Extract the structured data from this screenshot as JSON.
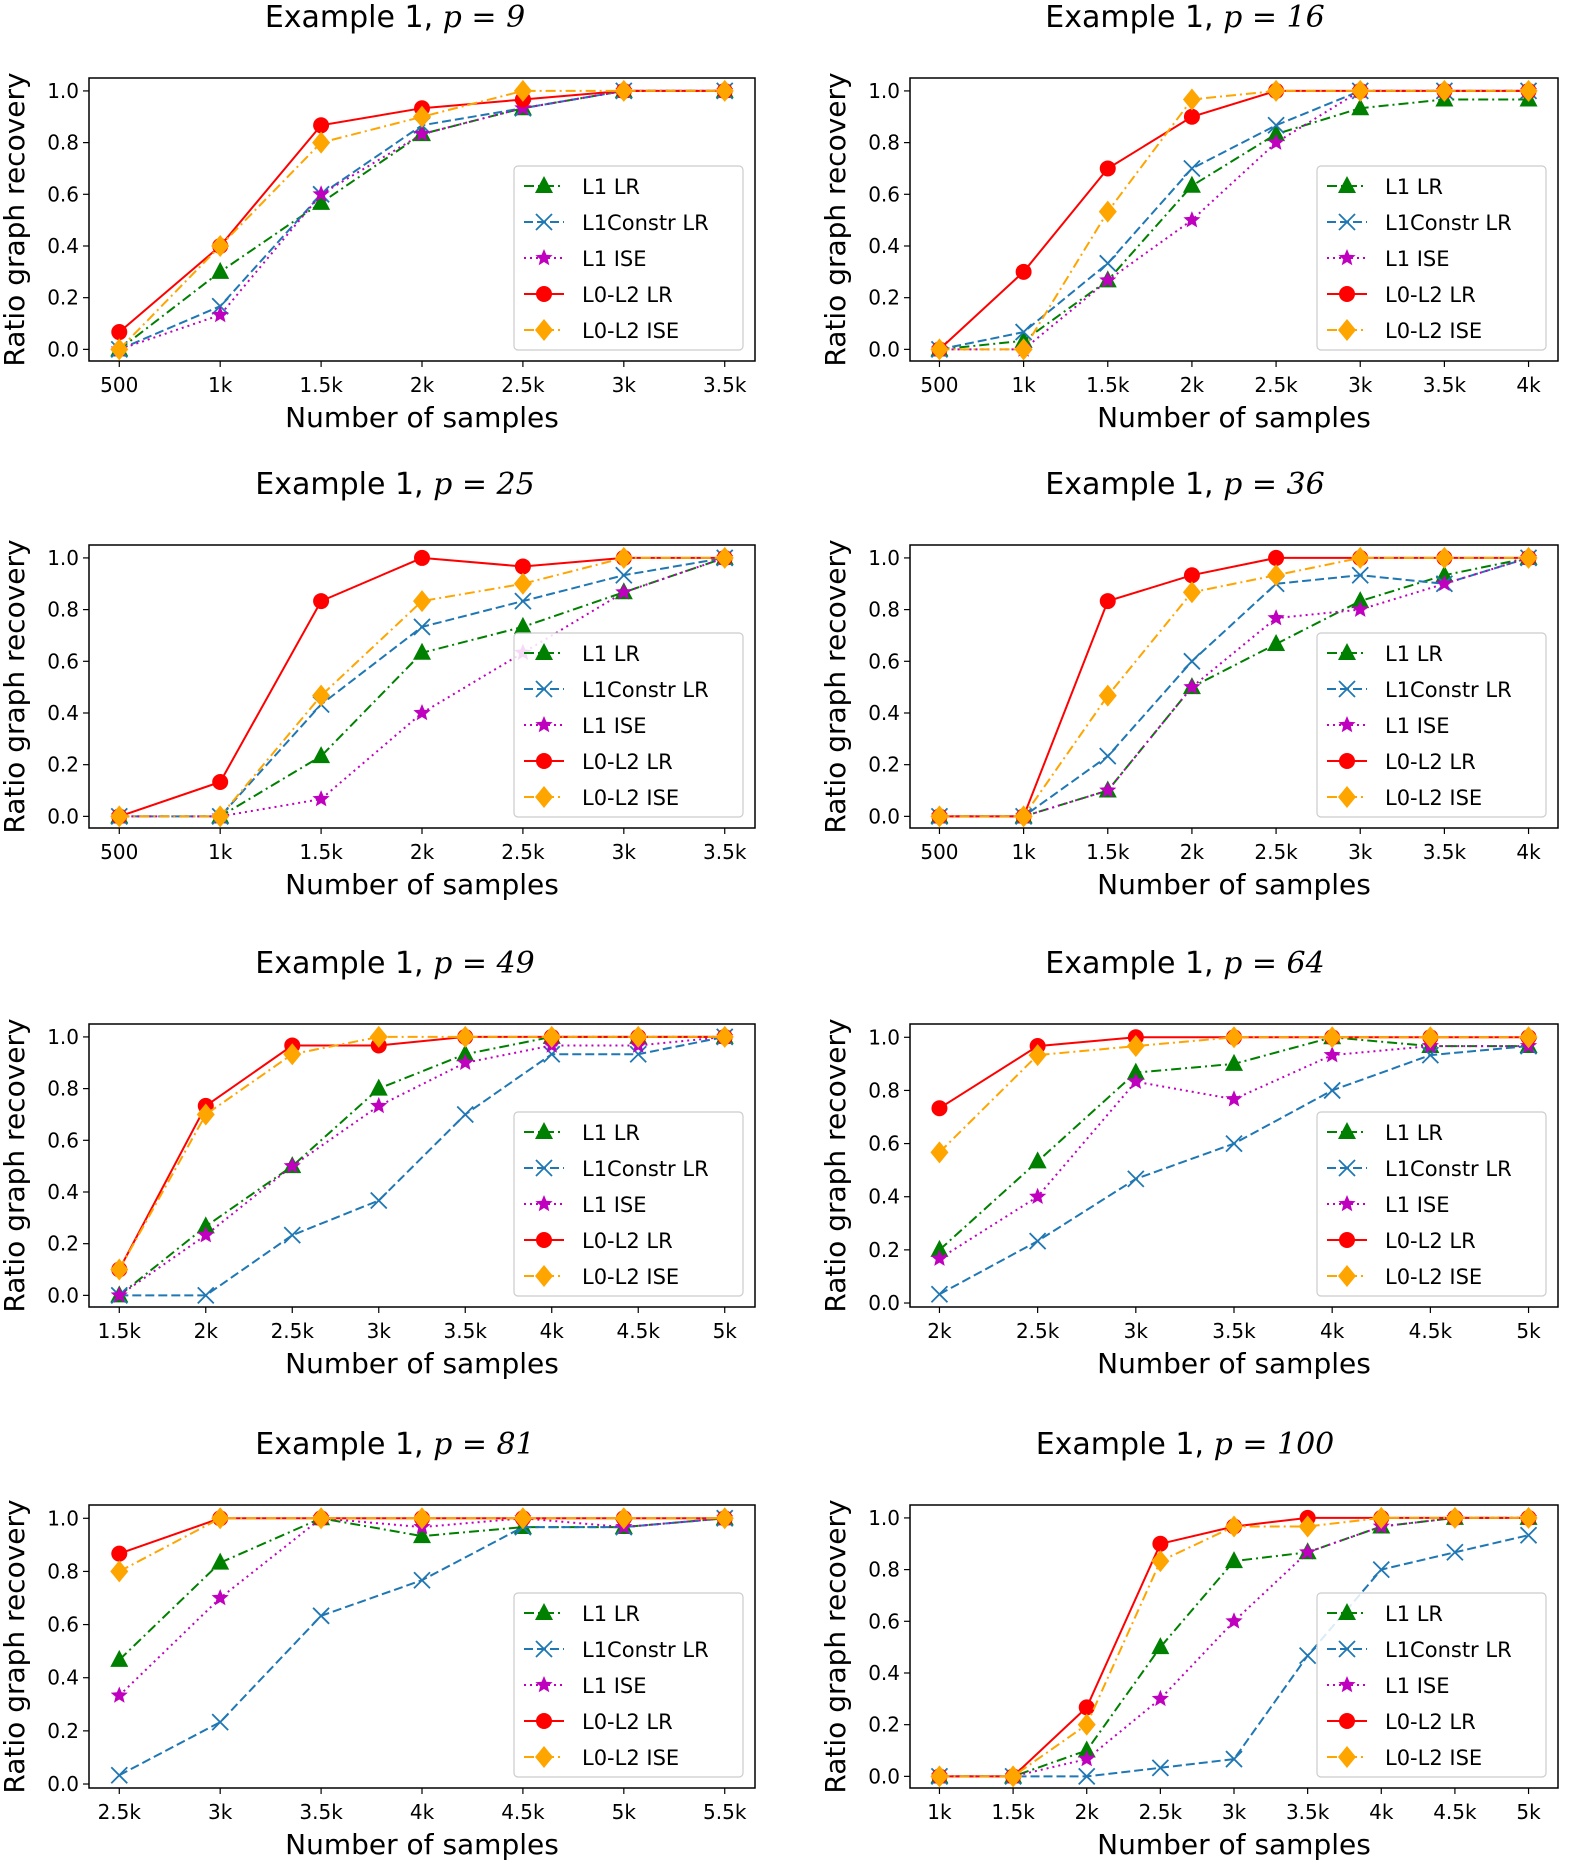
{
  "legend_placement": "lower-right",
  "series_styles": [
    {
      "name": "L1 LR",
      "color": "#008000",
      "marker": "triangle",
      "line": "dash-dot"
    },
    {
      "name": "L1Constr LR",
      "color": "#1f77b4",
      "marker": "x",
      "line": "dashed"
    },
    {
      "name": "L1 ISE",
      "color": "#bf00bf",
      "marker": "star",
      "line": "dotted"
    },
    {
      "name": "L0-L2 LR",
      "color": "#ff0000",
      "marker": "circle",
      "line": "solid"
    },
    {
      "name": "L0-L2 ISE",
      "color": "#ffa500",
      "marker": "diamond",
      "line": "dash-dot"
    }
  ],
  "chart_data": [
    {
      "type": "line",
      "title_prefix": "Example 1,",
      "title_math": "p = 9",
      "xlabel": "Number of samples",
      "ylabel": "Ratio graph recovery",
      "x": [
        500,
        1000,
        1500,
        2000,
        2500,
        3000,
        3500
      ],
      "xtick_labels": [
        "500",
        "1k",
        "1.5k",
        "2k",
        "2.5k",
        "3k",
        "3.5k"
      ],
      "yticks": [
        "0.0",
        "0.2",
        "0.4",
        "0.6",
        "0.8",
        "1.0"
      ],
      "ylim": [
        -0.045,
        1.05
      ],
      "grid": false,
      "series": [
        {
          "name": "L1 LR",
          "values": [
            0,
            0.3,
            0.567,
            0.833,
            0.933,
            1,
            1
          ]
        },
        {
          "name": "L1Constr LR",
          "values": [
            0,
            0.167,
            0.6,
            0.867,
            0.933,
            1,
            1
          ]
        },
        {
          "name": "L1 ISE",
          "values": [
            0,
            0.133,
            0.6,
            0.833,
            0.933,
            1,
            1
          ]
        },
        {
          "name": "L0-L2 LR",
          "values": [
            0.067,
            0.4,
            0.867,
            0.933,
            0.967,
            1,
            1
          ]
        },
        {
          "name": "L0-L2 ISE",
          "values": [
            0,
            0.4,
            0.8,
            0.9,
            1,
            1,
            1
          ]
        }
      ]
    },
    {
      "type": "line",
      "title_prefix": "Example 1,",
      "title_math": "p = 16",
      "xlabel": "Number of samples",
      "ylabel": "Ratio graph recovery",
      "x": [
        500,
        1000,
        1500,
        2000,
        2500,
        3000,
        3500,
        4000
      ],
      "xtick_labels": [
        "500",
        "1k",
        "1.5k",
        "2k",
        "2.5k",
        "3k",
        "3.5k",
        "4k"
      ],
      "yticks": [
        "0.0",
        "0.2",
        "0.4",
        "0.6",
        "0.8",
        "1.0"
      ],
      "ylim": [
        -0.045,
        1.05
      ],
      "grid": false,
      "series": [
        {
          "name": "L1 LR",
          "values": [
            0,
            0.033,
            0.267,
            0.633,
            0.833,
            0.933,
            0.967,
            0.967
          ]
        },
        {
          "name": "L1Constr LR",
          "values": [
            0,
            0.067,
            0.333,
            0.7,
            0.867,
            1,
            1,
            1
          ]
        },
        {
          "name": "L1 ISE",
          "values": [
            0,
            0,
            0.267,
            0.5,
            0.8,
            1,
            1,
            1
          ]
        },
        {
          "name": "L0-L2 LR",
          "values": [
            0,
            0.3,
            0.7,
            0.9,
            1,
            1,
            1,
            1
          ]
        },
        {
          "name": "L0-L2 ISE",
          "values": [
            0,
            0,
            0.533,
            0.967,
            1,
            1,
            1,
            1
          ]
        }
      ]
    },
    {
      "type": "line",
      "title_prefix": "Example 1,",
      "title_math": "p = 25",
      "xlabel": "Number of samples",
      "ylabel": "Ratio graph recovery",
      "x": [
        500,
        1000,
        1500,
        2000,
        2500,
        3000,
        3500
      ],
      "xtick_labels": [
        "500",
        "1k",
        "1.5k",
        "2k",
        "2.5k",
        "3k",
        "3.5k"
      ],
      "yticks": [
        "0.0",
        "0.2",
        "0.4",
        "0.6",
        "0.8",
        "1.0"
      ],
      "ylim": [
        -0.045,
        1.05
      ],
      "grid": false,
      "series": [
        {
          "name": "L1 LR",
          "values": [
            0,
            0,
            0.233,
            0.633,
            0.733,
            0.867,
            1
          ]
        },
        {
          "name": "L1Constr LR",
          "values": [
            0,
            0,
            0.433,
            0.733,
            0.833,
            0.933,
            1
          ]
        },
        {
          "name": "L1 ISE",
          "values": [
            0,
            0,
            0.067,
            0.4,
            0.633,
            0.867,
            1
          ]
        },
        {
          "name": "L0-L2 LR",
          "values": [
            0,
            0.133,
            0.833,
            1,
            0.967,
            1,
            1
          ]
        },
        {
          "name": "L0-L2 ISE",
          "values": [
            0,
            0,
            0.467,
            0.833,
            0.9,
            1,
            1
          ]
        }
      ]
    },
    {
      "type": "line",
      "title_prefix": "Example 1,",
      "title_math": "p = 36",
      "xlabel": "Number of samples",
      "ylabel": "Ratio graph recovery",
      "x": [
        500,
        1000,
        1500,
        2000,
        2500,
        3000,
        3500,
        4000
      ],
      "xtick_labels": [
        "500",
        "1k",
        "1.5k",
        "2k",
        "2.5k",
        "3k",
        "3.5k",
        "4k"
      ],
      "yticks": [
        "0.0",
        "0.2",
        "0.4",
        "0.6",
        "0.8",
        "1.0"
      ],
      "ylim": [
        -0.045,
        1.05
      ],
      "grid": false,
      "series": [
        {
          "name": "L1 LR",
          "values": [
            0,
            0,
            0.1,
            0.5,
            0.667,
            0.833,
            0.933,
            1
          ]
        },
        {
          "name": "L1Constr LR",
          "values": [
            0,
            0,
            0.233,
            0.6,
            0.9,
            0.933,
            0.9,
            1
          ]
        },
        {
          "name": "L1 ISE",
          "values": [
            0,
            0,
            0.1,
            0.5,
            0.767,
            0.8,
            0.9,
            1
          ]
        },
        {
          "name": "L0-L2 LR",
          "values": [
            0,
            0,
            0.833,
            0.933,
            1,
            1,
            1,
            1
          ]
        },
        {
          "name": "L0-L2 ISE",
          "values": [
            0,
            0,
            0.467,
            0.867,
            0.933,
            1,
            1,
            1
          ]
        }
      ]
    },
    {
      "type": "line",
      "title_prefix": "Example 1,",
      "title_math": "p = 49",
      "xlabel": "Number of samples",
      "ylabel": "Ratio graph recovery",
      "x": [
        1500,
        2000,
        2500,
        3000,
        3500,
        4000,
        4500,
        5000
      ],
      "xtick_labels": [
        "1.5k",
        "2k",
        "2.5k",
        "3k",
        "3.5k",
        "4k",
        "4.5k",
        "5k"
      ],
      "yticks": [
        "0.0",
        "0.2",
        "0.4",
        "0.6",
        "0.8",
        "1.0"
      ],
      "ylim": [
        -0.045,
        1.05
      ],
      "grid": false,
      "series": [
        {
          "name": "L1 LR",
          "values": [
            0,
            0.267,
            0.5,
            0.8,
            0.933,
            1,
            1,
            1
          ]
        },
        {
          "name": "L1Constr LR",
          "values": [
            0,
            0,
            0.233,
            0.367,
            0.7,
            0.933,
            0.933,
            1
          ]
        },
        {
          "name": "L1 ISE",
          "values": [
            0,
            0.233,
            0.5,
            0.733,
            0.9,
            0.967,
            0.967,
            1
          ]
        },
        {
          "name": "L0-L2 LR",
          "values": [
            0.1,
            0.733,
            0.967,
            0.967,
            1,
            1,
            1,
            1
          ]
        },
        {
          "name": "L0-L2 ISE",
          "values": [
            0.1,
            0.7,
            0.933,
            1,
            1,
            1,
            1,
            1
          ]
        }
      ]
    },
    {
      "type": "line",
      "title_prefix": "Example 1,",
      "title_math": "p = 64",
      "xlabel": "Number of samples",
      "ylabel": "Ratio graph recovery",
      "x": [
        2000,
        2500,
        3000,
        3500,
        4000,
        4500,
        5000
      ],
      "xtick_labels": [
        "2k",
        "2.5k",
        "3k",
        "3.5k",
        "4k",
        "4.5k",
        "5k"
      ],
      "yticks": [
        "0.0",
        "0.2",
        "0.4",
        "0.6",
        "0.8",
        "1.0"
      ],
      "ylim": [
        -0.015,
        1.05
      ],
      "grid": false,
      "series": [
        {
          "name": "L1 LR",
          "values": [
            0.2,
            0.533,
            0.867,
            0.9,
            1,
            0.967,
            0.967
          ]
        },
        {
          "name": "L1Constr LR",
          "values": [
            0.033,
            0.233,
            0.467,
            0.6,
            0.8,
            0.933,
            0.967
          ]
        },
        {
          "name": "L1 ISE",
          "values": [
            0.167,
            0.4,
            0.833,
            0.767,
            0.933,
            0.967,
            0.967
          ]
        },
        {
          "name": "L0-L2 LR",
          "values": [
            0.733,
            0.967,
            1,
            1,
            1,
            1,
            1
          ]
        },
        {
          "name": "L0-L2 ISE",
          "values": [
            0.567,
            0.933,
            0.967,
            1,
            1,
            1,
            1
          ]
        }
      ]
    },
    {
      "type": "line",
      "title_prefix": "Example 1,",
      "title_math": "p = 81",
      "xlabel": "Number of samples",
      "ylabel": "Ratio graph recovery",
      "x": [
        2500,
        3000,
        3500,
        4000,
        4500,
        5000,
        5500
      ],
      "xtick_labels": [
        "2.5k",
        "3k",
        "3.5k",
        "4k",
        "4.5k",
        "5k",
        "5.5k"
      ],
      "yticks": [
        "0.0",
        "0.2",
        "0.4",
        "0.6",
        "0.8",
        "1.0"
      ],
      "ylim": [
        -0.015,
        1.05
      ],
      "grid": false,
      "series": [
        {
          "name": "L1 LR",
          "values": [
            0.467,
            0.833,
            1,
            0.933,
            0.967,
            0.967,
            1
          ]
        },
        {
          "name": "L1Constr LR",
          "values": [
            0.033,
            0.233,
            0.633,
            0.767,
            0.967,
            0.967,
            1
          ]
        },
        {
          "name": "L1 ISE",
          "values": [
            0.333,
            0.7,
            1,
            0.967,
            1,
            0.967,
            1
          ]
        },
        {
          "name": "L0-L2 LR",
          "values": [
            0.867,
            1,
            1,
            1,
            1,
            1,
            1
          ]
        },
        {
          "name": "L0-L2 ISE",
          "values": [
            0.8,
            1,
            1,
            1,
            1,
            1,
            1
          ]
        }
      ]
    },
    {
      "type": "line",
      "title_prefix": "Example 1,",
      "title_math": "p = 100",
      "xlabel": "Number of samples",
      "ylabel": "Ratio graph recovery",
      "x": [
        1000,
        1500,
        2000,
        2500,
        3000,
        3500,
        4000,
        4500,
        5000
      ],
      "xtick_labels": [
        "1k",
        "1.5k",
        "2k",
        "2.5k",
        "3k",
        "3.5k",
        "4k",
        "4.5k",
        "5k"
      ],
      "yticks": [
        "0.0",
        "0.2",
        "0.4",
        "0.6",
        "0.8",
        "1.0"
      ],
      "ylim": [
        -0.045,
        1.05
      ],
      "grid": false,
      "series": [
        {
          "name": "L1 LR",
          "values": [
            0,
            0,
            0.1,
            0.5,
            0.833,
            0.867,
            0.967,
            1,
            1
          ]
        },
        {
          "name": "L1Constr LR",
          "values": [
            0,
            0,
            0,
            0.033,
            0.067,
            0.467,
            0.8,
            0.867,
            0.933
          ]
        },
        {
          "name": "L1 ISE",
          "values": [
            0,
            0,
            0.067,
            0.3,
            0.6,
            0.867,
            0.967,
            1,
            1
          ]
        },
        {
          "name": "L0-L2 LR",
          "values": [
            0,
            0,
            0.267,
            0.9,
            0.967,
            1,
            1,
            1,
            1
          ]
        },
        {
          "name": "L0-L2 ISE",
          "values": [
            0,
            0,
            0.2,
            0.833,
            0.967,
            0.967,
            1,
            1,
            1
          ]
        }
      ]
    }
  ]
}
